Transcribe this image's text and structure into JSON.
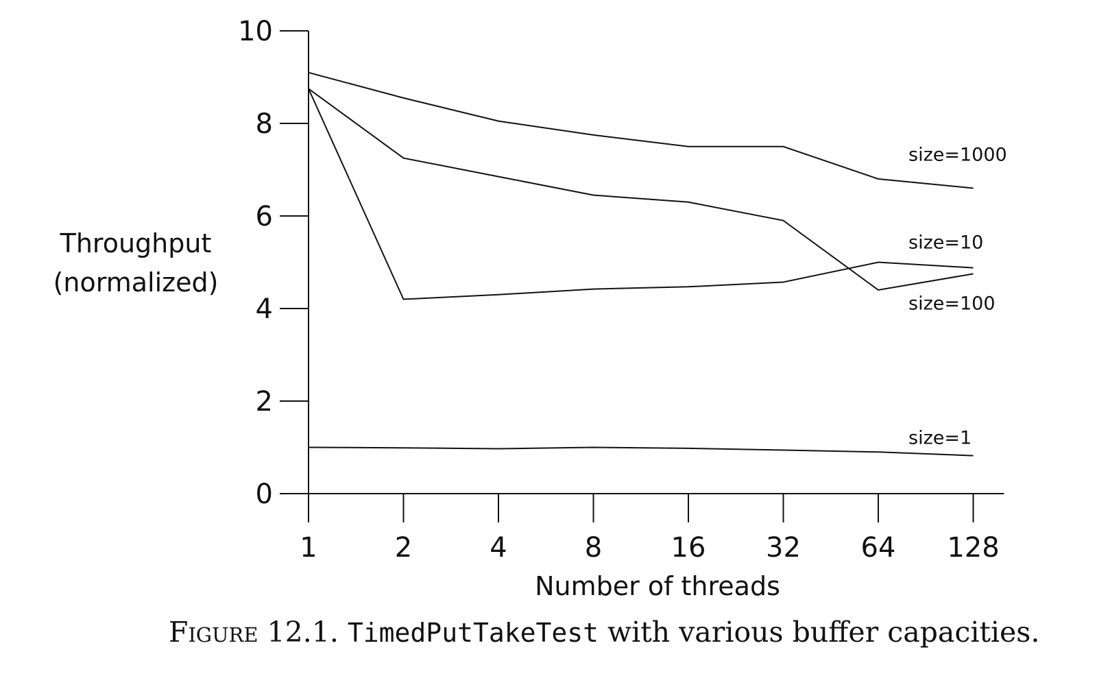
{
  "chart_data": {
    "type": "line",
    "title": "",
    "xlabel": "Number of threads",
    "ylabel_lines": [
      "Throughput",
      "(normalized)"
    ],
    "x_scale": "log2",
    "x": [
      1,
      2,
      4,
      8,
      16,
      32,
      64,
      128
    ],
    "x_tick_labels": [
      "1",
      "2",
      "4",
      "8",
      "16",
      "32",
      "64",
      "128"
    ],
    "ylim": [
      0,
      10
    ],
    "y_ticks": [
      0,
      2,
      4,
      6,
      8,
      10
    ],
    "y_tick_labels": [
      "0",
      "2",
      "4",
      "6",
      "8",
      "10"
    ],
    "grid": false,
    "legend": "inline-labels-right",
    "series": [
      {
        "name": "size=1000",
        "values": [
          9.1,
          8.55,
          8.05,
          7.75,
          7.5,
          7.5,
          6.8,
          6.6
        ]
      },
      {
        "name": "size=100",
        "values": [
          8.75,
          7.25,
          6.85,
          6.45,
          6.3,
          5.9,
          4.4,
          4.75
        ]
      },
      {
        "name": "size=10",
        "values": [
          8.75,
          4.2,
          4.3,
          4.42,
          4.47,
          4.57,
          5.0,
          4.88
        ]
      },
      {
        "name": "size=1",
        "values": [
          1.0,
          0.99,
          0.97,
          1.0,
          0.98,
          0.94,
          0.9,
          0.82
        ]
      }
    ]
  },
  "caption": {
    "figure_label": "Figure 12.1.",
    "code": "TimedPutTakeTest",
    "text": " with various buffer capacities."
  }
}
